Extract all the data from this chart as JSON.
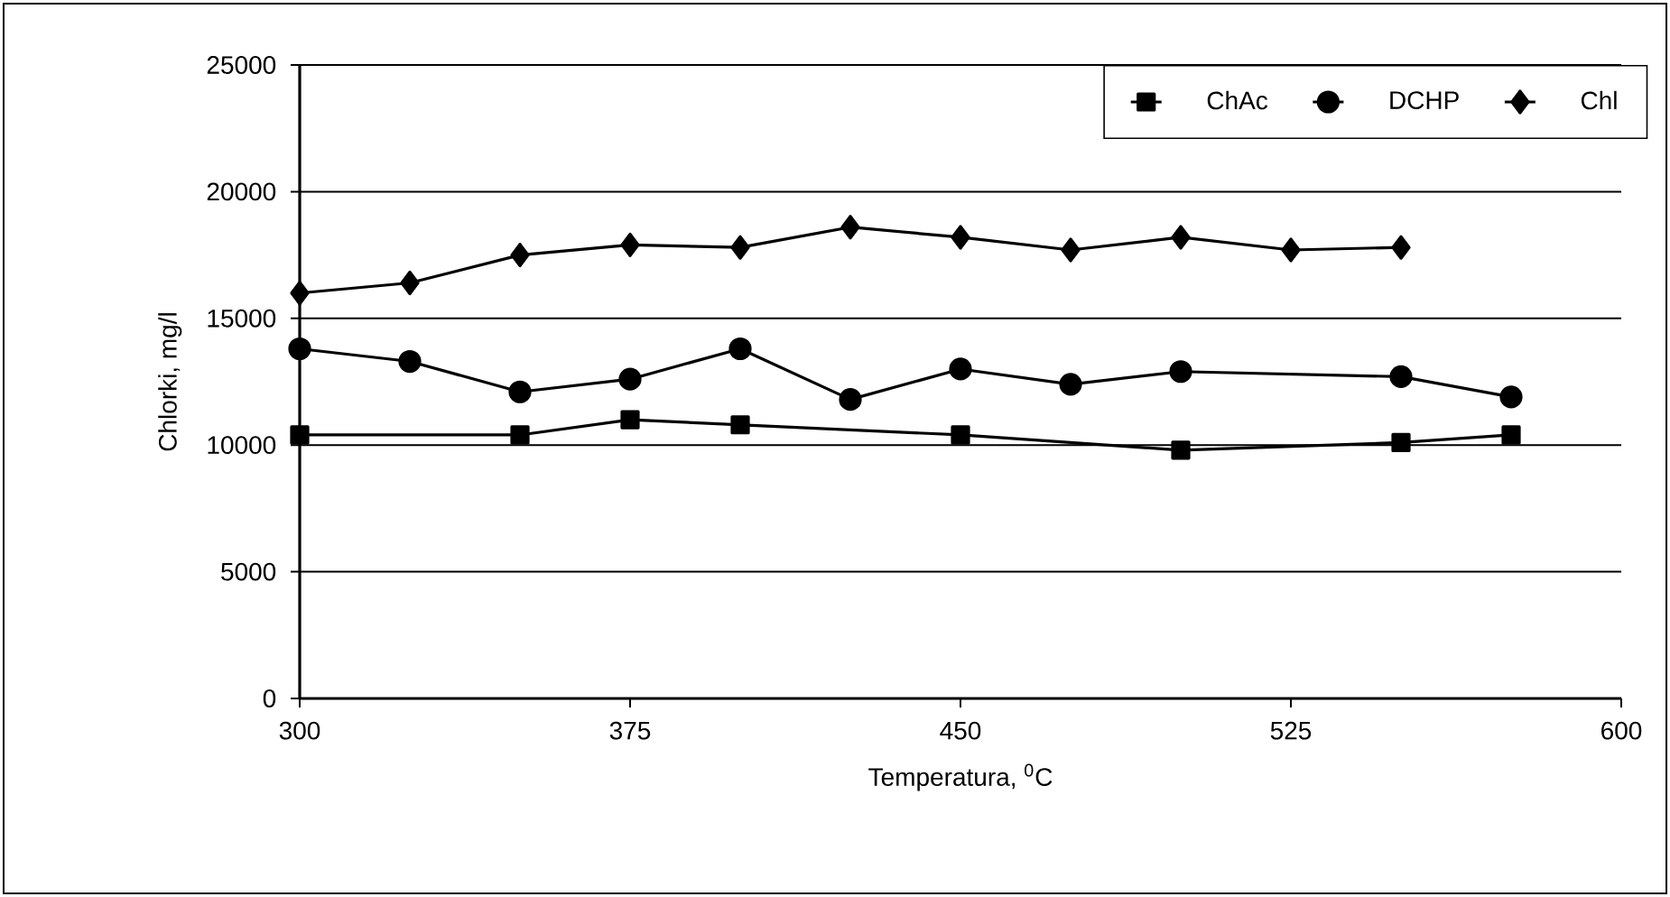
{
  "chart_data": {
    "type": "line",
    "xlabel": "Temperatura, $^{0}$C",
    "ylabel": "Chlorki, mg/l",
    "xlim": [
      300,
      600
    ],
    "xticks": [
      300,
      375,
      450,
      525,
      600
    ],
    "ylim": [
      0,
      25000
    ],
    "yticks": [
      0,
      5000,
      10000,
      15000,
      20000,
      25000
    ],
    "grid": "y",
    "legend": "top right",
    "line_style": "solid",
    "series": [
      {
        "name": "ChAc",
        "color": "#000000",
        "marker": "square",
        "x": [
          300,
          350,
          375,
          400,
          450,
          500,
          550,
          575
        ],
        "values": [
          10400,
          10400,
          11000,
          10800,
          10400,
          9800,
          10100,
          10400
        ]
      },
      {
        "name": "DCHP",
        "color": "#000000",
        "marker": "circle",
        "x": [
          300,
          325,
          350,
          375,
          400,
          425,
          450,
          475,
          500,
          550,
          575
        ],
        "values": [
          13800,
          13300,
          12100,
          12600,
          13800,
          11800,
          13000,
          12400,
          12900,
          12700,
          11900
        ]
      },
      {
        "name": "Chl",
        "color": "#000000",
        "marker": "diamond",
        "x": [
          300,
          325,
          350,
          375,
          400,
          425,
          450,
          475,
          500,
          525,
          550
        ],
        "values": [
          16000,
          16400,
          17500,
          17900,
          17800,
          18600,
          18200,
          17700,
          18200,
          17700,
          17800
        ]
      }
    ]
  }
}
